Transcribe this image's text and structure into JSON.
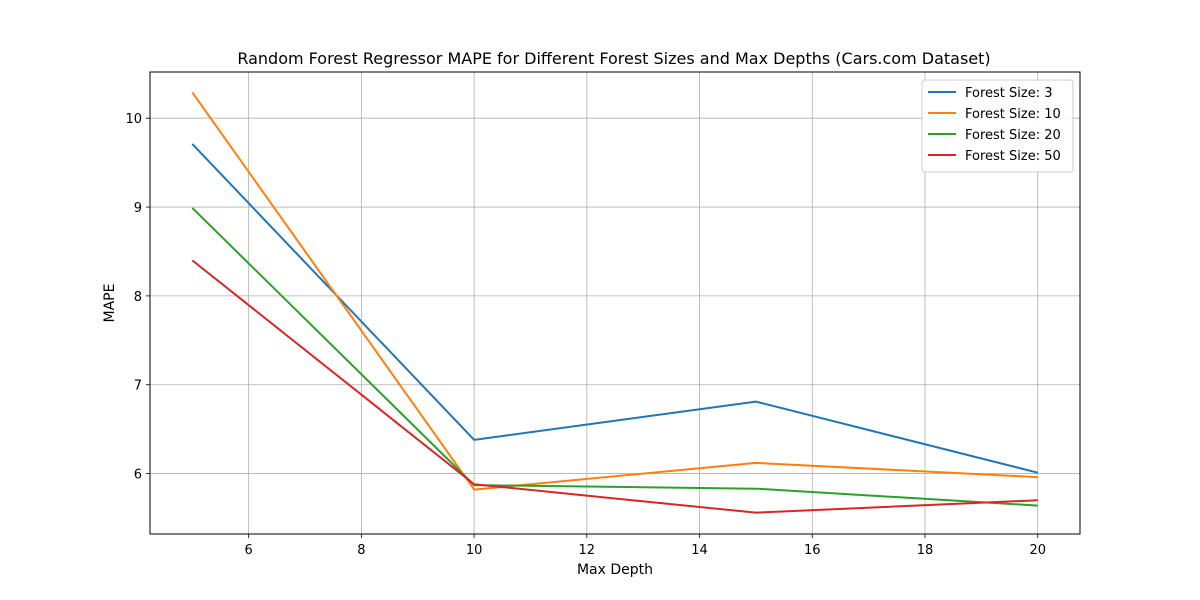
{
  "chart_data": {
    "type": "line",
    "title": "Random Forest Regressor MAPE for Different Forest Sizes and Max Depths (Cars.com Dataset)",
    "xlabel": "Max Depth",
    "ylabel": "MAPE",
    "x": [
      5,
      10,
      15,
      20
    ],
    "xlim": [
      4.25,
      20.75
    ],
    "ylim": [
      5.32,
      10.52
    ],
    "xticks": [
      6,
      8,
      10,
      12,
      14,
      16,
      18,
      20
    ],
    "yticks": [
      6,
      7,
      8,
      9,
      10
    ],
    "grid": true,
    "legend_position": "top-right",
    "series": [
      {
        "name": "Forest Size: 3",
        "color": "#1f77b4",
        "values": [
          9.71,
          6.38,
          6.81,
          6.01
        ]
      },
      {
        "name": "Forest Size: 10",
        "color": "#ff7f0e",
        "values": [
          10.29,
          5.82,
          6.12,
          5.96
        ]
      },
      {
        "name": "Forest Size: 20",
        "color": "#2ca02c",
        "values": [
          8.99,
          5.87,
          5.83,
          5.64
        ]
      },
      {
        "name": "Forest Size: 50",
        "color": "#d62728",
        "values": [
          8.4,
          5.88,
          5.56,
          5.7
        ]
      }
    ]
  }
}
